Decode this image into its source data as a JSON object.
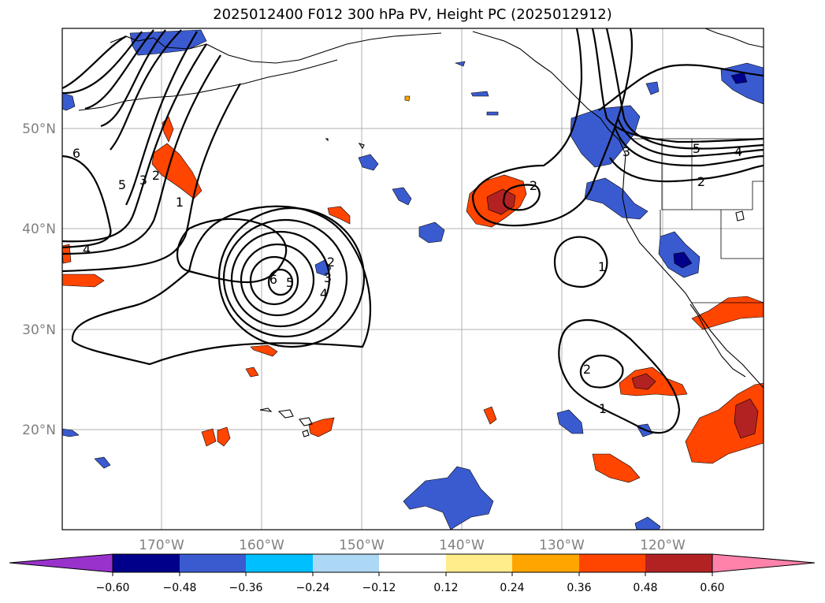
{
  "title": "2025012400 F012 300 hPa PV, Height PC (2025012912)",
  "map": {
    "lat_labels": [
      "50°N",
      "40°N",
      "30°N",
      "20°N"
    ],
    "lon_labels": [
      "170°W",
      "160°W",
      "150°W",
      "140°W",
      "130°W",
      "120°W"
    ],
    "label_color": "#808080"
  },
  "contour_labels": [
    "6",
    "5",
    "3",
    "2",
    "1",
    "4",
    "6",
    "5",
    "4",
    "3",
    "2",
    "2",
    "1",
    "2",
    "1",
    "3",
    "5",
    "4",
    "2"
  ],
  "colorbar": {
    "ticks": [
      "−0.60",
      "−0.48",
      "−0.36",
      "−0.24",
      "−0.12",
      "0.12",
      "0.24",
      "0.36",
      "0.48",
      "0.60"
    ],
    "colors": [
      "#9932cc",
      "#00008b",
      "#3a5bd0",
      "#00bfff",
      "#add8f5",
      "#ffffff",
      "#ffec8b",
      "#ffa500",
      "#ff4500",
      "#b22222",
      "#ff82ab"
    ]
  }
}
